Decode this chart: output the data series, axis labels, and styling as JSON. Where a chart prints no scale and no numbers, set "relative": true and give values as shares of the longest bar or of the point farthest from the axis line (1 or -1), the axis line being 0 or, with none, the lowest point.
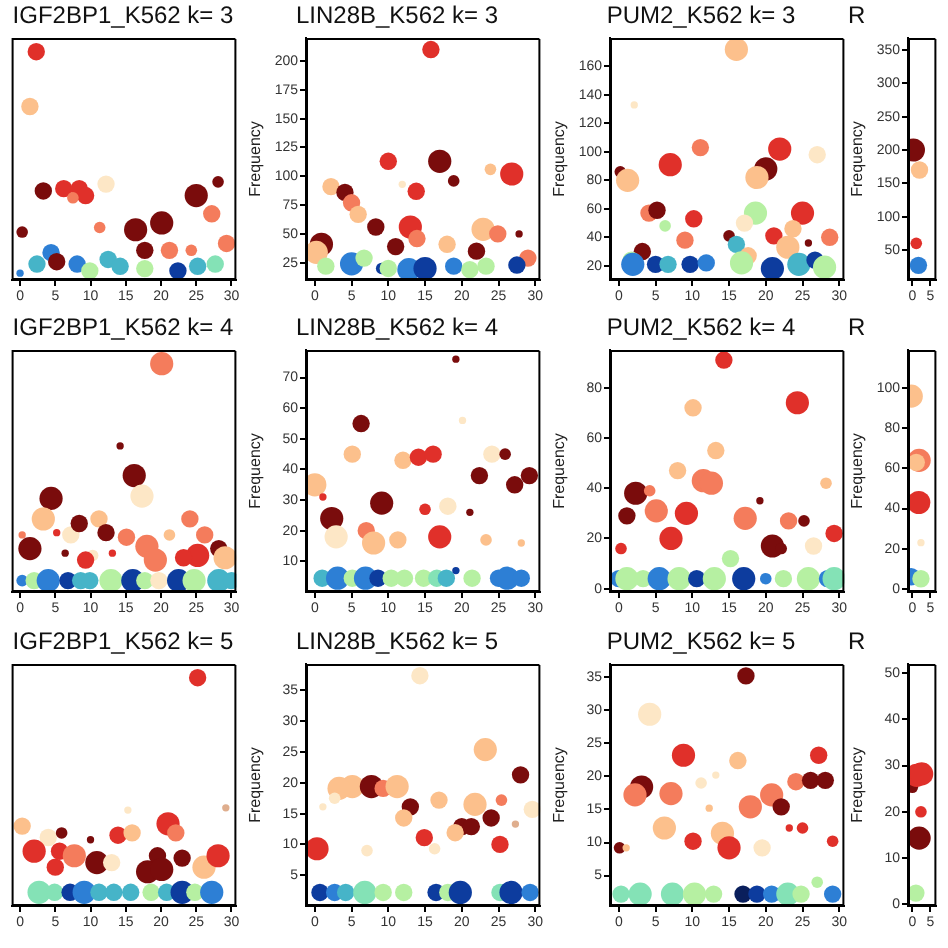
{
  "chart_data": [
    {
      "type": "bubble",
      "title": "IGF2BP1_K562 k= 3",
      "relative": true,
      "tick_labels": "x",
      "xlim": [
        -1.2,
        30.7
      ],
      "xticks": [
        0,
        5,
        10,
        15,
        20,
        25,
        30
      ],
      "x": [
        2.3,
        1.4,
        3.3,
        6.2,
        8.4,
        9.3,
        7.5,
        12.2,
        0.3,
        11.3,
        16.4,
        20.1,
        25,
        28.1,
        27.2,
        29.3,
        17.7,
        21.2,
        24.3,
        4.4,
        5.2,
        8.1,
        2.4,
        12.5,
        9.9,
        14.2,
        17.7,
        22.4,
        25.2,
        27.7,
        0
      ],
      "values": [
        1,
        0.76,
        0.39,
        0.4,
        0.4,
        0.37,
        0.36,
        0.42,
        0.21,
        0.23,
        0.22,
        0.25,
        0.37,
        0.43,
        0.29,
        0.16,
        0.13,
        0.13,
        0.13,
        0.12,
        0.08,
        0.07,
        0.07,
        0.09,
        0.04,
        0.06,
        0.05,
        0.04,
        0.06,
        0.07,
        0.03
      ],
      "sizes": [
        0.56,
        0.56,
        0.56,
        0.56,
        0.56,
        0.56,
        0.25,
        0.56,
        0.25,
        0.25,
        1,
        1,
        1,
        0.25,
        0.56,
        0.56,
        0.56,
        0.56,
        0.25,
        0.56,
        0.56,
        0.56,
        0.56,
        0.56,
        0.56,
        0.56,
        0.56,
        0.56,
        0.56,
        0.56,
        0.1
      ],
      "colors": [
        "#e0302a",
        "#fcc08c",
        "#7a0c0c",
        "#e0302a",
        "#e0302a",
        "#e0302a",
        "#f47c5c",
        "#fde7c6",
        "#7a0c0c",
        "#f47c5c",
        "#7a0c0c",
        "#7a0c0c",
        "#7a0c0c",
        "#7a0c0c",
        "#f47c5c",
        "#f47c5c",
        "#7a0c0c",
        "#f47c5c",
        "#f47c5c",
        "#2d7fd5",
        "#7a0c0c",
        "#2d7fd5",
        "#46b4c8",
        "#46b4c8",
        "#b6f0a2",
        "#46b4c8",
        "#b6f0a2",
        "#0d3c9e",
        "#46b4c8",
        "#84e2b6",
        "#2d7fd5"
      ]
    },
    {
      "type": "bubble",
      "title": "LIN28B_K562 k= 3",
      "ylabel": "Frequency",
      "xlim": [
        -1.2,
        30.7
      ],
      "xticks": [
        0,
        5,
        10,
        15,
        20,
        25,
        30
      ],
      "ylim": [
        10,
        220
      ],
      "yticks": [
        25,
        50,
        75,
        100,
        125,
        150,
        175,
        200
      ],
      "x": [
        15.8,
        10,
        17,
        18.9,
        2.2,
        4.1,
        5,
        5.9,
        11.9,
        13.8,
        13,
        13.9,
        8.3,
        11,
        0.9,
        0.2,
        1.5,
        5,
        6.7,
        9.1,
        10,
        12.8,
        15,
        18,
        18.9,
        26.8,
        23.9,
        22.9,
        24.9,
        27.8,
        22,
        29,
        27.5,
        23.3,
        21.1
      ],
      "values": [
        210,
        113,
        113,
        96,
        91,
        86,
        77,
        67,
        93,
        87,
        56,
        46,
        56,
        39,
        41,
        34,
        22,
        24,
        29,
        20,
        20,
        19,
        20,
        41,
        22,
        102,
        106,
        54,
        50,
        50,
        35,
        29,
        23,
        22,
        19
      ],
      "sizes": [
        0.56,
        0.56,
        1,
        0.25,
        0.56,
        0.56,
        0.56,
        0.56,
        0.1,
        0.56,
        1,
        0.56,
        0.56,
        0.56,
        1,
        1,
        0.56,
        1,
        0.56,
        0.25,
        0.56,
        1,
        1,
        0.56,
        0.56,
        1,
        0.25,
        1,
        0.56,
        0.1,
        0.56,
        0.56,
        0.56,
        0.56,
        0.56
      ],
      "colors": [
        "#e0302a",
        "#e0302a",
        "#7a0c0c",
        "#7a0c0c",
        "#fcc08c",
        "#7a0c0c",
        "#f47c5c",
        "#fcc08c",
        "#fde7c6",
        "#e0302a",
        "#e0302a",
        "#f47c5c",
        "#7a0c0c",
        "#7a0c0c",
        "#7a0c0c",
        "#fcc08c",
        "#b6f0a2",
        "#2d7fd5",
        "#b6f0a2",
        "#0d3c9e",
        "#b6f0a2",
        "#2d7fd5",
        "#0d3c9e",
        "#fcc08c",
        "#2d7fd5",
        "#e0302a",
        "#fcc08c",
        "#fcc08c",
        "#f47c5c",
        "#7a0c0c",
        "#7a0c0c",
        "#f47c5c",
        "#0d3c9e",
        "#b6f0a2",
        "#b6f0a2"
      ]
    },
    {
      "type": "bubble",
      "title": "PUM2_K562 k= 3",
      "ylabel": "Frequency",
      "xlim": [
        -1.2,
        30.7
      ],
      "xticks": [
        0,
        5,
        10,
        15,
        20,
        25,
        30
      ],
      "ylim": [
        10,
        180
      ],
      "yticks": [
        20,
        40,
        60,
        80,
        100,
        120,
        140,
        160
      ],
      "x": [
        16,
        2.1,
        0.2,
        1.2,
        7,
        11.1,
        21.9,
        20,
        18.8,
        27,
        4.1,
        5.2,
        10.2,
        6.3,
        9,
        18.6,
        17.1,
        25,
        23.7,
        15,
        21.1,
        25.8,
        28.7,
        3.2,
        16,
        23,
        1.7,
        1.9,
        5,
        6.7,
        9.7,
        11.9,
        17.6,
        16.7,
        20.9,
        24.5,
        26.7,
        28
      ],
      "values": [
        172,
        133,
        86,
        80,
        91,
        103,
        102,
        88,
        82,
        98,
        57,
        59,
        53,
        48,
        38,
        57,
        50,
        57,
        46,
        41,
        41,
        36,
        40,
        30,
        35,
        33,
        24,
        21,
        21,
        21,
        21,
        22,
        27,
        22,
        18,
        21,
        24,
        19
      ],
      "sizes": [
        1,
        0.1,
        0.25,
        1,
        1,
        0.56,
        1,
        1,
        1,
        0.56,
        0.56,
        0.56,
        0.56,
        0.25,
        0.56,
        1,
        0.56,
        1,
        0.56,
        0.25,
        0.56,
        0.1,
        0.56,
        0.56,
        0.56,
        1,
        0.56,
        1,
        0.56,
        0.56,
        0.56,
        0.56,
        0.56,
        1,
        1,
        1,
        0.56,
        1
      ],
      "colors": [
        "#fcc08c",
        "#fde7c6",
        "#7a0c0c",
        "#fcc08c",
        "#e0302a",
        "#f47c5c",
        "#e0302a",
        "#7a0c0c",
        "#fcc08c",
        "#fde7c6",
        "#f47c5c",
        "#7a0c0c",
        "#e0302a",
        "#b6f0a2",
        "#f47c5c",
        "#b6f0a2",
        "#fde7c6",
        "#e0302a",
        "#fcc08c",
        "#7a0c0c",
        "#e0302a",
        "#7a0c0c",
        "#f47c5c",
        "#7a0c0c",
        "#46b4c8",
        "#fcc08c",
        "#b6f0a2",
        "#2d7fd5",
        "#0d3c9e",
        "#46b4c8",
        "#0d3c9e",
        "#2d7fd5",
        "#fcc08c",
        "#b6f0a2",
        "#0d3c9e",
        "#46b4c8",
        "#0d3c9e",
        "#b6f0a2"
      ]
    },
    {
      "type": "bubble",
      "title": "R",
      "ylabel": "Frequency",
      "xlim": [
        -1.2,
        6.7
      ],
      "xticks": [
        0,
        5
      ],
      "ylim": [
        5,
        368
      ],
      "yticks": [
        50,
        100,
        150,
        200,
        250,
        300,
        350
      ],
      "x": [
        0.3,
        2,
        1.1,
        1.7
      ],
      "values": [
        200,
        170,
        60,
        27
      ],
      "sizes": [
        1,
        0.56,
        0.25,
        0.56
      ],
      "colors": [
        "#7a0c0c",
        "#fcc08c",
        "#e0302a",
        "#2d7fd5"
      ]
    },
    {
      "type": "bubble",
      "title": "IGF2BP1_K562 k= 4",
      "relative": true,
      "tick_labels": "x",
      "xlim": [
        -1.2,
        30.7
      ],
      "xticks": [
        0,
        5,
        10,
        15,
        20,
        25,
        30
      ],
      "x": [
        20.1,
        14.2,
        16.2,
        17.3,
        4.4,
        3.3,
        0.3,
        1.4,
        5.2,
        7.2,
        8.4,
        6.4,
        10.3,
        9.3,
        11.2,
        12.2,
        15.1,
        13.1,
        18,
        19.2,
        21.2,
        24.1,
        26.2,
        25.2,
        28.2,
        29.1,
        23.2,
        0.3,
        2,
        4,
        6.8,
        8.6,
        9.9,
        12.9,
        16,
        17.7,
        19.7,
        22.5,
        24.7,
        28.2,
        30
      ],
      "values": [
        1,
        0.64,
        0.51,
        0.42,
        0.41,
        0.32,
        0.25,
        0.19,
        0.26,
        0.25,
        0.3,
        0.17,
        0.16,
        0.14,
        0.32,
        0.26,
        0.24,
        0.17,
        0.2,
        0.14,
        0.25,
        0.32,
        0.25,
        0.16,
        0.19,
        0.15,
        0.15,
        0.05,
        0.05,
        0.05,
        0.05,
        0.05,
        0.05,
        0.05,
        0.05,
        0.05,
        0.05,
        0.05,
        0.05,
        0.05,
        0.05
      ],
      "sizes": [
        1,
        0.1,
        1,
        1,
        1,
        1,
        0.1,
        1,
        0.1,
        0.56,
        0.56,
        0.1,
        0.25,
        0.56,
        0.56,
        0.56,
        0.56,
        0.1,
        1,
        1,
        0.25,
        0.56,
        0.56,
        1,
        0.56,
        1,
        0.56,
        0.25,
        0.56,
        1,
        0.56,
        0.56,
        0.56,
        1,
        1,
        0.56,
        0.56,
        1,
        1,
        1,
        0.56
      ],
      "colors": [
        "#f47c5c",
        "#7a0c0c",
        "#7a0c0c",
        "#fde7c6",
        "#7a0c0c",
        "#fcc08c",
        "#f47c5c",
        "#7a0c0c",
        "#e0302a",
        "#fde7c6",
        "#7a0c0c",
        "#7a0c0c",
        "#fde7c6",
        "#e0302a",
        "#fcc08c",
        "#7a0c0c",
        "#f47c5c",
        "#e0302a",
        "#f47c5c",
        "#f47c5c",
        "#fcc08c",
        "#f47c5c",
        "#f47c5c",
        "#e0302a",
        "#7a0c0c",
        "#fcc08c",
        "#e0302a",
        "#2d7fd5",
        "#b6f0a2",
        "#2d7fd5",
        "#0d3c9e",
        "#46b4c8",
        "#46b4c8",
        "#b6f0a2",
        "#0d3c9e",
        "#b6f0a2",
        "#fde7c6",
        "#0d3c9e",
        "#b6f0a2",
        "#46b4c8",
        "#46b4c8"
      ]
    },
    {
      "type": "bubble",
      "title": "LIN28B_K562 k= 4",
      "ylabel": "Frequency",
      "xlim": [
        -1.2,
        30.7
      ],
      "xticks": [
        0,
        5,
        10,
        15,
        20,
        25,
        30
      ],
      "ylim": [
        0,
        79
      ],
      "yticks": [
        10,
        20,
        30,
        40,
        50,
        60,
        70
      ],
      "x": [
        19.2,
        20.1,
        6.3,
        5.1,
        0,
        1.1,
        2.3,
        2.9,
        9.1,
        7,
        8,
        11.3,
        12,
        14.1,
        16.1,
        15,
        17,
        18.1,
        21.1,
        24.1,
        25.9,
        22.4,
        27.2,
        29.2,
        23.3,
        28.1,
        1,
        3.1,
        5.1,
        6.9,
        8.6,
        10.4,
        12.2,
        14.8,
        16.6,
        17.9,
        19.2,
        21.4,
        25,
        26.2,
        28.1
      ],
      "values": [
        76,
        56,
        55,
        45,
        35,
        31,
        24,
        18,
        29,
        20,
        16,
        17,
        43,
        44,
        45,
        27,
        18,
        28,
        26,
        45,
        45,
        38,
        35,
        38,
        17,
        16,
        4.5,
        4.5,
        4.5,
        4.5,
        4.5,
        4.5,
        4.5,
        4.5,
        4.5,
        4.5,
        7,
        4.5,
        4.5,
        4.5,
        4.5
      ],
      "sizes": [
        0.1,
        0.1,
        0.56,
        0.56,
        1,
        0.1,
        1,
        1,
        1,
        0.56,
        1,
        0.56,
        0.56,
        0.56,
        0.56,
        0.25,
        1,
        0.56,
        0.1,
        0.56,
        0.25,
        0.56,
        0.56,
        0.56,
        0.25,
        0.1,
        0.56,
        1,
        0.56,
        1,
        0.56,
        0.56,
        0.56,
        0.56,
        0.56,
        0.56,
        0.1,
        0.56,
        0.56,
        1,
        0.56
      ],
      "colors": [
        "#7a0c0c",
        "#fde7c6",
        "#7a0c0c",
        "#fcc08c",
        "#fcc08c",
        "#e0302a",
        "#7a0c0c",
        "#fde7c6",
        "#7a0c0c",
        "#f47c5c",
        "#fcc08c",
        "#fcc08c",
        "#fcc08c",
        "#e0302a",
        "#e0302a",
        "#e0302a",
        "#e0302a",
        "#fde7c6",
        "#7a0c0c",
        "#fde7c6",
        "#7a0c0c",
        "#7a0c0c",
        "#7a0c0c",
        "#7a0c0c",
        "#fcc08c",
        "#fcc08c",
        "#46b4c8",
        "#2d7fd5",
        "#b6f0a2",
        "#2d7fd5",
        "#0d3c9e",
        "#b6f0a2",
        "#b6f0a2",
        "#b6f0a2",
        "#84e2b6",
        "#46b4c8",
        "#0d3c9e",
        "#b6f0a2",
        "#2d7fd5",
        "#2d7fd5",
        "#2d7fd5"
      ]
    },
    {
      "type": "bubble",
      "title": "PUM2_K562 k= 4",
      "ylabel": "Frequency",
      "xlim": [
        -1.2,
        30.7
      ],
      "xticks": [
        0,
        5,
        10,
        15,
        20,
        25,
        30
      ],
      "ylim": [
        -1.3,
        95
      ],
      "yticks": [
        0,
        20,
        40,
        60,
        80
      ],
      "x": [
        14.3,
        24.3,
        10.1,
        13.2,
        8,
        2.3,
        4.2,
        1.1,
        5.1,
        9.2,
        11.5,
        12.6,
        7.1,
        0.3,
        19.2,
        17.2,
        23.1,
        25.2,
        28.2,
        29.3,
        20.9,
        22.1,
        26.5,
        15.2,
        0,
        1.1,
        3.3,
        5.5,
        8.2,
        10.6,
        13,
        17,
        20,
        22.4,
        25.8,
        28.4,
        29.3
      ],
      "values": [
        91,
        74,
        72,
        55,
        47,
        38,
        39,
        29,
        31,
        30,
        43,
        42,
        20,
        16,
        35,
        28,
        27,
        27,
        42,
        22,
        17,
        16,
        17,
        12,
        4,
        4,
        4,
        4,
        4,
        4,
        4,
        4,
        4,
        4,
        4,
        4,
        4
      ],
      "sizes": [
        0.56,
        1,
        0.56,
        0.56,
        0.56,
        1,
        0.25,
        0.56,
        1,
        1,
        1,
        1,
        1,
        0.25,
        0.1,
        1,
        0.56,
        0.25,
        0.25,
        0.56,
        1,
        0.25,
        0.56,
        0.56,
        0.56,
        1,
        0.56,
        1,
        1,
        0.56,
        1,
        1,
        0.25,
        0.56,
        1,
        0.56,
        1
      ],
      "colors": [
        "#e0302a",
        "#e0302a",
        "#fcc08c",
        "#fcc08c",
        "#fcc08c",
        "#7a0c0c",
        "#f47c5c",
        "#7a0c0c",
        "#f47c5c",
        "#e0302a",
        "#f47c5c",
        "#f47c5c",
        "#e0302a",
        "#e0302a",
        "#7a0c0c",
        "#f47c5c",
        "#f47c5c",
        "#7a0c0c",
        "#fcc08c",
        "#e0302a",
        "#7a0c0c",
        "#7a0c0c",
        "#fde7c6",
        "#b6f0a2",
        "#2d7fd5",
        "#b6f0a2",
        "#b6f0a2",
        "#2d7fd5",
        "#b6f0a2",
        "#0d3c9e",
        "#b6f0a2",
        "#0d3c9e",
        "#2d7fd5",
        "#b6f0a2",
        "#b6f0a2",
        "#2d7fd5",
        "#84e2b6"
      ]
    },
    {
      "type": "bubble",
      "title": "R",
      "ylabel": "Frequency",
      "xlim": [
        -1.2,
        6.7
      ],
      "xticks": [
        0,
        5
      ],
      "ylim": [
        -1.6,
        119
      ],
      "yticks": [
        0,
        20,
        40,
        60,
        80,
        100
      ],
      "x": [
        -0.3,
        1.9,
        1.1,
        1.8,
        2.4,
        -0.3,
        2.4
      ],
      "values": [
        96,
        64,
        63,
        43,
        23,
        6,
        5
      ],
      "sizes": [
        1,
        1,
        0.56,
        1,
        0.1,
        0.56,
        0.56
      ],
      "colors": [
        "#fcc08c",
        "#f47c5c",
        "#fcc08c",
        "#e0302a",
        "#fde7c6",
        "#2d7fd5",
        "#b6f0a2"
      ]
    },
    {
      "type": "bubble",
      "title": "IGF2BP1_K562 k= 5",
      "relative": true,
      "tick_labels": "x",
      "xlim": [
        -1.2,
        30.7
      ],
      "xticks": [
        0,
        5,
        10,
        15,
        20,
        25,
        30
      ],
      "x": [
        25.2,
        29.2,
        15.3,
        0.3,
        4,
        5.9,
        10,
        13.9,
        15.9,
        21,
        22.1,
        2,
        5.6,
        7.7,
        5,
        10.9,
        13,
        18.1,
        19.5,
        20.1,
        23,
        26.1,
        28.1,
        2.7,
        4.9,
        7.1,
        9.1,
        11.2,
        13.3,
        15.7,
        18.6,
        20.8,
        23,
        24.8,
        27.2
      ],
      "values": [
        1,
        0.43,
        0.42,
        0.35,
        0.3,
        0.32,
        0.29,
        0.31,
        0.32,
        0.36,
        0.32,
        0.24,
        0.24,
        0.22,
        0.17,
        0.19,
        0.19,
        0.15,
        0.22,
        0.16,
        0.21,
        0.17,
        0.22,
        0.06,
        0.06,
        0.06,
        0.06,
        0.06,
        0.06,
        0.06,
        0.06,
        0.06,
        0.06,
        0.06,
        0.06
      ],
      "sizes": [
        0.56,
        0.1,
        0.1,
        0.56,
        0.56,
        0.25,
        0.1,
        0.56,
        0.56,
        1,
        0.56,
        1,
        0.56,
        1,
        0.56,
        1,
        0.56,
        1,
        0.56,
        1,
        0.56,
        1,
        1,
        1,
        0.56,
        0.56,
        1,
        0.56,
        0.56,
        0.56,
        0.56,
        0.56,
        1,
        0.56,
        1
      ],
      "colors": [
        "#e0302a",
        "#dfae8e",
        "#fde7c6",
        "#fcc08c",
        "#fde7c6",
        "#7a0c0c",
        "#7a0c0c",
        "#e0302a",
        "#fcc08c",
        "#e0302a",
        "#f47c5c",
        "#e0302a",
        "#e0302a",
        "#f47c5c",
        "#e0302a",
        "#7a0c0c",
        "#fde7c6",
        "#7a0c0c",
        "#7a0c0c",
        "#7a0c0c",
        "#7a0c0c",
        "#fcc08c",
        "#e0302a",
        "#84e2b6",
        "#84e2b6",
        "#0d3c9e",
        "#2d7fd5",
        "#46b4c8",
        "#46b4c8",
        "#46b4c8",
        "#b6f0a2",
        "#46b4c8",
        "#0d3c9e",
        "#b6f0a2",
        "#2d7fd5"
      ]
    },
    {
      "type": "bubble",
      "title": "LIN28B_K562 k= 5",
      "ylabel": "Frequency",
      "xlim": [
        -1.2,
        30.7
      ],
      "xticks": [
        0,
        5,
        10,
        15,
        20,
        25,
        30
      ],
      "ylim": [
        0,
        39.3
      ],
      "yticks": [
        5,
        10,
        15,
        20,
        25,
        30,
        35
      ],
      "x": [
        14.3,
        5.1,
        3.3,
        2.7,
        1.1,
        0.3,
        7.7,
        9.3,
        11.2,
        13,
        12.1,
        7.1,
        14.9,
        16.3,
        16.9,
        20,
        19.1,
        21.3,
        23.2,
        21.8,
        25.4,
        24,
        28,
        29.6,
        27.3,
        25.2,
        0.7,
        2.7,
        4.2,
        6.8,
        9.3,
        12.1,
        16.5,
        18.1,
        19.8,
        25.2,
        26.7,
        29.3
      ],
      "values": [
        37.4,
        19.4,
        19.1,
        17.5,
        16.1,
        9.3,
        19.4,
        19.1,
        19.4,
        16.1,
        14.3,
        9,
        11.1,
        9.3,
        17.2,
        12.9,
        11.9,
        12.9,
        25.4,
        16.5,
        17.2,
        14.3,
        21.3,
        15.7,
        13.3,
        10,
        2.2,
        2.2,
        2.2,
        2.2,
        2.2,
        2.2,
        2.2,
        2.2,
        2.2,
        2.2,
        2.2,
        2.2
      ],
      "sizes": [
        0.56,
        1,
        1,
        0.25,
        0.1,
        1,
        1,
        0.56,
        1,
        0.56,
        0.56,
        0.25,
        0.56,
        0.25,
        0.56,
        0.56,
        0.56,
        0.56,
        1,
        1,
        0.25,
        0.56,
        0.56,
        0.56,
        0.1,
        0.56,
        0.56,
        0.56,
        0.56,
        1,
        0.56,
        0.56,
        0.56,
        0.56,
        1,
        0.56,
        1,
        0.56
      ],
      "colors": [
        "#fde7c6",
        "#fcc08c",
        "#fcc08c",
        "#fde7c6",
        "#fde7c6",
        "#e0302a",
        "#7a0c0c",
        "#f47c5c",
        "#fcc08c",
        "#7a0c0c",
        "#fcc08c",
        "#fde7c6",
        "#e0302a",
        "#fde7c6",
        "#fcc08c",
        "#7a0c0c",
        "#fcc08c",
        "#7a0c0c",
        "#fcc08c",
        "#fcc08c",
        "#f47c5c",
        "#7a0c0c",
        "#7a0c0c",
        "#fde7c6",
        "#dfae8e",
        "#e0302a",
        "#0d3c9e",
        "#2d7fd5",
        "#46b4c8",
        "#84e2b6",
        "#b6f0a2",
        "#b6f0a2",
        "#0d3c9e",
        "#b6f0a2",
        "#0d3c9e",
        "#84e2b6",
        "#0d3c9e",
        "#2d7fd5"
      ]
    },
    {
      "type": "bubble",
      "title": "PUM2_K562 k= 5",
      "ylabel": "Frequency",
      "xlim": [
        -1.2,
        30.7
      ],
      "xticks": [
        0,
        5,
        10,
        15,
        20,
        25,
        30
      ],
      "ylim": [
        0.4,
        37
      ],
      "yticks": [
        5,
        10,
        15,
        20,
        25,
        30,
        35
      ],
      "x": [
        17.3,
        4.2,
        8.8,
        16.2,
        27.2,
        13.2,
        3.1,
        2.2,
        7.1,
        11.2,
        12.3,
        6.2,
        10.1,
        14.1,
        15,
        17.9,
        20.8,
        22.1,
        24.1,
        26.1,
        28.1,
        23.2,
        25,
        29.1,
        19.5,
        0.1,
        1,
        0.3,
        2.9,
        7.3,
        10.3,
        12.9,
        16.9,
        18.8,
        20.8,
        23,
        24.8,
        27,
        29.1
      ],
      "values": [
        35.2,
        29.4,
        23.2,
        22.4,
        23.2,
        20.2,
        18.4,
        17.2,
        17.4,
        19,
        15.2,
        12.2,
        10.2,
        11.4,
        9.2,
        15.4,
        17.2,
        15.4,
        19.2,
        19.4,
        19.4,
        12.2,
        12.2,
        10.2,
        9.2,
        9.2,
        9.2,
        2.2,
        2.2,
        2.2,
        2.2,
        2.2,
        2.2,
        2.2,
        2.2,
        2.2,
        2.2,
        4,
        2.2
      ],
      "sizes": [
        0.56,
        1,
        1,
        0.56,
        0.56,
        0.1,
        1,
        1,
        1,
        0.25,
        0.1,
        1,
        0.56,
        1,
        1,
        1,
        1,
        0.56,
        0.56,
        0.56,
        0.56,
        0.1,
        0.25,
        0.25,
        0.56,
        0.25,
        0.1,
        0.56,
        1,
        1,
        1,
        0.56,
        0.56,
        0.56,
        0.56,
        1,
        0.56,
        0.25,
        0.56
      ],
      "colors": [
        "#7a0c0c",
        "#fde7c6",
        "#e0302a",
        "#fcc08c",
        "#e0302a",
        "#fde7c6",
        "#7a0c0c",
        "#f47c5c",
        "#f47c5c",
        "#fde7c6",
        "#fcc08c",
        "#fcc08c",
        "#e0302a",
        "#fcc08c",
        "#e0302a",
        "#f47c5c",
        "#f47c5c",
        "#7a0c0c",
        "#f47c5c",
        "#7a0c0c",
        "#7a0c0c",
        "#e0302a",
        "#e0302a",
        "#e0302a",
        "#fde7c6",
        "#7a0c0c",
        "#fcc08c",
        "#84e2b6",
        "#84e2b6",
        "#84e2b6",
        "#b6f0a2",
        "#b6f0a2",
        "#0a1f5c",
        "#0d3c9e",
        "#2d7fd5",
        "#84e2b6",
        "#b6f0a2",
        "#b6f0a2",
        "#2d7fd5"
      ]
    },
    {
      "type": "bubble",
      "title": "R",
      "ylabel": "Frequency",
      "xlim": [
        -1.2,
        6.7
      ],
      "xticks": [
        0,
        5
      ],
      "ylim": [
        -0.4,
        52
      ],
      "yticks": [
        0,
        10,
        20,
        30,
        40,
        50
      ],
      "x": [
        0,
        1.2,
        2.6,
        2.4,
        1.9,
        1
      ],
      "values": [
        25.3,
        27.9,
        28.2,
        20,
        14.3,
        2.4
      ],
      "sizes": [
        0.25,
        1,
        1,
        0.25,
        1,
        0.56
      ],
      "colors": [
        "#7a0c0c",
        "#e0302a",
        "#e0302a",
        "#e0302a",
        "#7a0c0c",
        "#b6f0a2"
      ]
    }
  ]
}
